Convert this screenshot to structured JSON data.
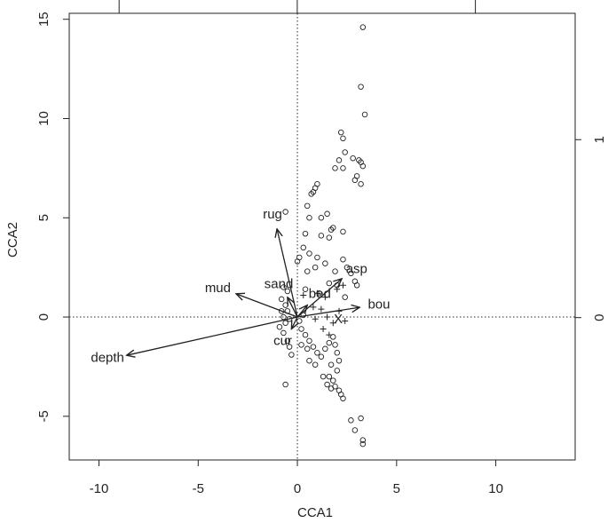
{
  "chart_data": {
    "type": "scatter",
    "x_label": "CCA1",
    "y_label": "CCA2",
    "xlim": [
      -11.5,
      14.0
    ],
    "ylim": [
      -7.2,
      15.3
    ],
    "xticks": [
      -10,
      -5,
      0,
      5,
      10
    ],
    "yticks": [
      -5,
      0,
      5,
      10,
      15
    ],
    "y2lim": [
      -0.8,
      1.71
    ],
    "y2ticks": [
      0,
      1
    ],
    "x2lim": [
      -1.28,
      1.56
    ],
    "x2ticks": [
      -1,
      0,
      1
    ],
    "zero_lines": true,
    "series": [
      {
        "marker": "circle",
        "color": "#222222",
        "x": [
          3.3,
          3.2,
          3.4,
          2.2,
          2.3,
          2.4,
          2.8,
          3.1,
          3.2,
          3.3,
          2.1,
          2.3,
          1.9,
          3.0,
          2.9,
          3.2,
          1.0,
          0.9,
          0.8,
          0.7,
          0.5,
          1.5,
          1.2,
          0.6,
          -0.6,
          1.8,
          1.7,
          2.3,
          0.4,
          1.2,
          1.6,
          0.3,
          0.6,
          1.0,
          0.1,
          0.0,
          1.4,
          2.3,
          2.5,
          0.5,
          0.9,
          1.9,
          2.7,
          2.9,
          3.0,
          1.6,
          2.0,
          0.4,
          1.1,
          2.4,
          -0.7,
          -0.5,
          -0.8,
          -0.6,
          -0.8,
          -0.7,
          -0.6,
          -0.9,
          -0.7,
          -0.5,
          -0.4,
          -0.3,
          0.2,
          0.4,
          0.6,
          0.8,
          1.0,
          1.2,
          0.6,
          0.9,
          1.4,
          1.6,
          1.8,
          1.9,
          2.0,
          1.7,
          2.0,
          1.8,
          1.9,
          2.1,
          2.2,
          2.3,
          1.6,
          1.3,
          1.5,
          1.7,
          2.1,
          -0.4,
          0.1,
          0.3,
          -0.5,
          0.2,
          0.5,
          2.7,
          3.2,
          2.9,
          3.3,
          3.3,
          -0.6
        ],
        "y": [
          14.6,
          11.6,
          10.2,
          9.3,
          9.0,
          8.3,
          8.0,
          7.9,
          7.8,
          7.6,
          7.9,
          7.5,
          7.5,
          7.1,
          6.9,
          6.7,
          6.7,
          6.5,
          6.3,
          6.2,
          5.6,
          5.2,
          5.0,
          5.0,
          5.3,
          4.5,
          4.4,
          4.3,
          4.2,
          4.1,
          4.0,
          3.5,
          3.2,
          3.0,
          3.0,
          2.8,
          2.7,
          2.9,
          2.5,
          2.3,
          2.5,
          2.3,
          2.2,
          1.8,
          1.6,
          1.7,
          1.6,
          1.4,
          1.2,
          1.0,
          1.5,
          1.3,
          0.9,
          0.6,
          0.3,
          0.0,
          -0.3,
          -0.5,
          -0.8,
          -1.2,
          -1.5,
          -1.9,
          -0.6,
          -0.9,
          -1.2,
          -1.5,
          -1.8,
          -2.0,
          -2.2,
          -2.4,
          -1.6,
          -1.3,
          -1.0,
          -1.4,
          -1.8,
          -2.4,
          -2.7,
          -3.2,
          -3.5,
          -3.7,
          -3.9,
          -4.1,
          -3.0,
          -3.0,
          -3.4,
          -3.6,
          -2.2,
          -0.1,
          -0.2,
          0.1,
          0.3,
          -1.4,
          -1.6,
          -5.2,
          -5.1,
          -5.7,
          -6.2,
          -6.4,
          -3.4
        ]
      },
      {
        "marker": "plus",
        "color": "#222222",
        "x": [
          0.3,
          1.0,
          1.4,
          2.0,
          2.3,
          0.8,
          1.2,
          2.1,
          1.8,
          1.3,
          1.6,
          2.4,
          0.9,
          1.5
        ],
        "y": [
          1.1,
          1.2,
          1.0,
          1.4,
          1.6,
          0.5,
          0.4,
          0.3,
          -0.3,
          -0.6,
          -0.9,
          -0.2,
          -0.1,
          0.0
        ]
      }
    ],
    "arrows": [
      {
        "label": "rug",
        "x": -1.03,
        "y": 4.44
      },
      {
        "label": "mud",
        "x": -3.09,
        "y": 1.17
      },
      {
        "label": "sand",
        "x": -0.5,
        "y": 1.0
      },
      {
        "label": "bed",
        "x": 0.5,
        "y": 0.6
      },
      {
        "label": "asp",
        "x": 2.24,
        "y": 1.93
      },
      {
        "label": "bou",
        "x": 3.14,
        "y": 0.49
      },
      {
        "label": "cur",
        "x": -0.3,
        "y": -0.6
      },
      {
        "label": "depth",
        "x": -8.61,
        "y": -1.93
      }
    ],
    "centroids": [
      {
        "label": "X",
        "x": 2.06,
        "y": -0.13
      }
    ]
  }
}
